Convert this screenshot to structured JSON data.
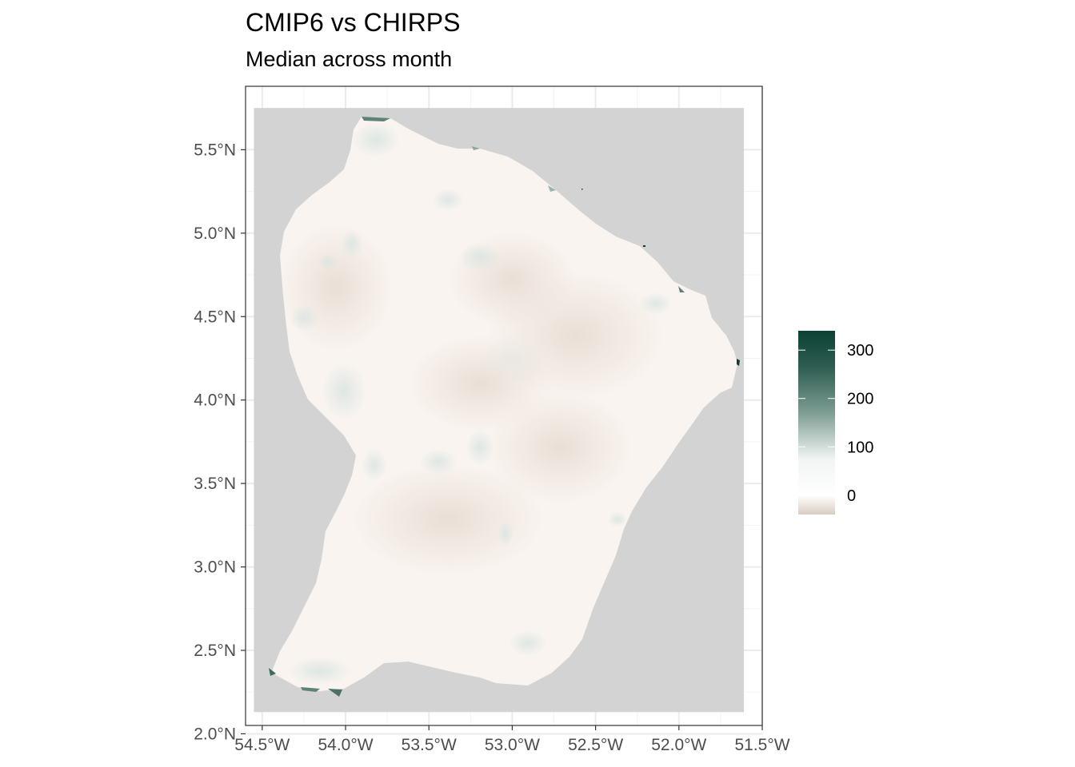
{
  "title": "CMIP6 vs CHIRPS",
  "subtitle": "Median across month",
  "map": {
    "type": "raster-heatmap",
    "region": "French Guiana",
    "x_range": [
      -54.6,
      -51.5
    ],
    "y_range": [
      2.05,
      5.88
    ],
    "x_ticks": [
      {
        "value": -54.5,
        "label": "54.5°W"
      },
      {
        "value": -54.0,
        "label": "54.0°W"
      },
      {
        "value": -53.5,
        "label": "53.5°W"
      },
      {
        "value": -53.0,
        "label": "53.0°W"
      },
      {
        "value": -52.5,
        "label": "52.5°W"
      },
      {
        "value": -52.0,
        "label": "52.0°W"
      },
      {
        "value": -51.5,
        "label": "51.5°W"
      }
    ],
    "y_ticks": [
      {
        "value": 2.0,
        "label": "2.0°N"
      },
      {
        "value": 2.5,
        "label": "2.5°N"
      },
      {
        "value": 3.0,
        "label": "3.0°N"
      },
      {
        "value": 3.5,
        "label": "3.5°N"
      },
      {
        "value": 4.0,
        "label": "4.0°N"
      },
      {
        "value": 4.5,
        "label": "4.5°N"
      },
      {
        "value": 5.0,
        "label": "5.0°N"
      },
      {
        "value": 5.5,
        "label": "5.5°N"
      }
    ],
    "raster_extent": {
      "lon": [
        -54.55,
        -51.61
      ],
      "lat": [
        2.13,
        5.75
      ]
    },
    "na_color": "#d3d3d3",
    "grid": true,
    "colors": {
      "low": "#d9cdc2",
      "mid": "#ffffff",
      "high": "#0b4133"
    }
  },
  "legend": {
    "position": "right",
    "min": -40,
    "max": 340,
    "ticks": [
      {
        "value": 0,
        "label": "0"
      },
      {
        "value": 100,
        "label": "100"
      },
      {
        "value": 200,
        "label": "200"
      },
      {
        "value": 300,
        "label": "300"
      }
    ]
  }
}
